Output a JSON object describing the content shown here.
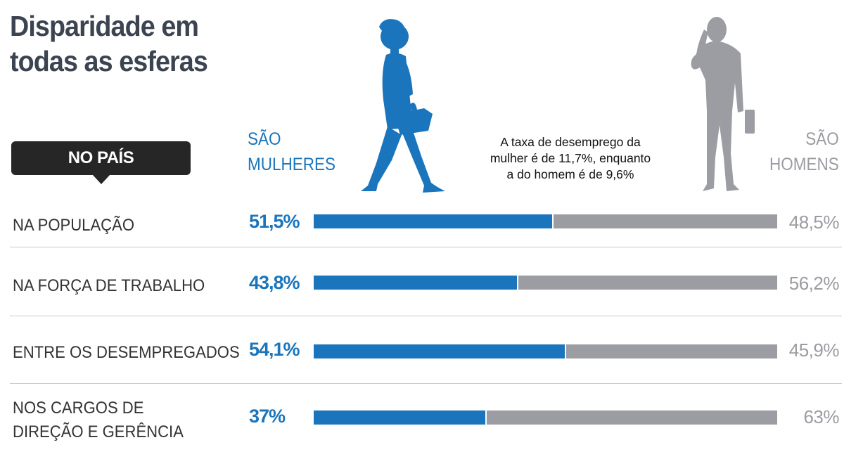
{
  "title": {
    "line1": "Disparidade em",
    "line2": "todas as esferas"
  },
  "badge": "NO PAÍS",
  "legend": {
    "women": [
      "SÃO",
      "MULHERES"
    ],
    "men": [
      "SÃO",
      "HOMENS"
    ]
  },
  "note": [
    "A taxa de desemprego da",
    "mulher é de 11,7%, enquanto",
    "a do homem é de 9,6%"
  ],
  "colors": {
    "women": "#1a75bc",
    "men": "#9c9da3",
    "title": "#3b4450"
  },
  "icons": {
    "woman": "woman-walking-silhouette-icon",
    "man": "man-on-phone-silhouette-icon"
  },
  "rows": [
    {
      "label": [
        "NA POPULAÇÃO"
      ],
      "women_label": "51,5%",
      "men_label": "48,5%"
    },
    {
      "label": [
        "NA FORÇA DE TRABALHO"
      ],
      "women_label": "43,8%",
      "men_label": "56,2%"
    },
    {
      "label": [
        "ENTRE OS DESEMPREGADOS"
      ],
      "women_label": "54,1%",
      "men_label": "45,9%"
    },
    {
      "label": [
        "NOS CARGOS DE",
        "DIREÇÃO E GERÊNCIA"
      ],
      "women_label": "37%",
      "men_label": "63%"
    }
  ],
  "chart_data": {
    "type": "bar",
    "orientation": "horizontal-stacked-100",
    "title": "Disparidade em todas as esferas",
    "categories": [
      "NA POPULAÇÃO",
      "NA FORÇA DE TRABALHO",
      "ENTRE OS DESEMPREGADOS",
      "NOS CARGOS DE DIREÇÃO E GERÊNCIA"
    ],
    "series": [
      {
        "name": "SÃO MULHERES",
        "values": [
          51.5,
          43.8,
          54.1,
          37
        ]
      },
      {
        "name": "SÃO HOMENS",
        "values": [
          48.5,
          56.2,
          45.9,
          63
        ]
      }
    ],
    "xlim": [
      0,
      100
    ],
    "grid": false
  }
}
